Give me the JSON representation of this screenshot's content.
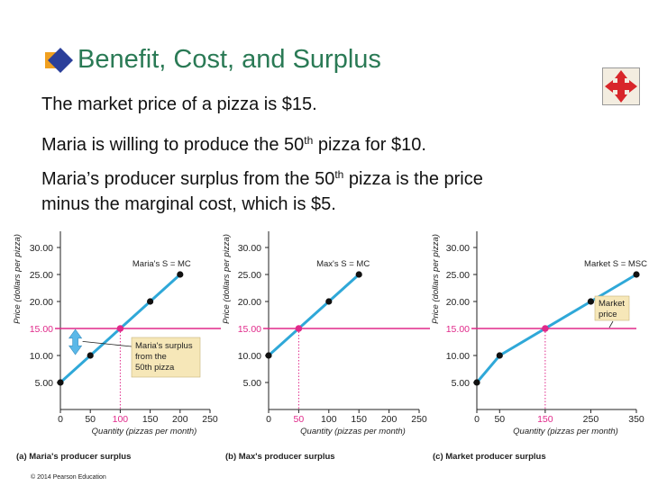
{
  "slide": {
    "title": "Benefit, Cost, and Surplus",
    "copyright": "© 2014 Pearson Education",
    "bullet_icon": "diamond-bullet-icon",
    "nav_icon": "four-way-arrows-icon",
    "paragraphs": [
      {
        "before": "The market price of a pizza is $15.",
        "sup": "",
        "after": ""
      },
      {
        "before": "Maria is willing to produce the 50",
        "sup": "th",
        "after": " pizza for $10."
      },
      {
        "before": "Maria’s producer surplus from the 50",
        "sup": "th",
        "after": " pizza is the price"
      },
      {
        "before": "minus the marginal cost, which is $5.",
        "sup": "",
        "after": ""
      }
    ]
  },
  "colors": {
    "supply_line": "#2fa8d8",
    "price_line": "#e0298a",
    "point": "#111111",
    "callout_fill": "#f6e7b8",
    "surplus_arrow": "#5ab8e8"
  },
  "chart_data": [
    {
      "type": "line",
      "caption": "(a) Maria's producer surplus",
      "ylabel": "Price (dollars per pizza)",
      "xlabel": "Quantity (pizzas per month)",
      "curve_label": "Maria's S = MC",
      "x_ticks": [
        "0",
        "50",
        "100",
        "150",
        "200",
        "250"
      ],
      "x_tick_values": [
        0,
        50,
        100,
        150,
        200,
        250
      ],
      "y_ticks": [
        "5.00",
        "10.00",
        "15.00",
        "20.00",
        "25.00",
        "30.00"
      ],
      "y_tick_values": [
        5,
        10,
        15,
        20,
        25,
        30
      ],
      "xlim": [
        0,
        250
      ],
      "ylim": [
        0,
        33
      ],
      "series": [
        {
          "x": [
            0,
            50,
            150,
            200
          ],
          "y": [
            5,
            10,
            20,
            25
          ]
        }
      ],
      "price_line": 15,
      "price_label": "15.00",
      "equilibrium": {
        "x": 100,
        "y": 15
      },
      "annotation": {
        "lines": [
          "Maria's surplus",
          "from the",
          "50th pizza"
        ]
      }
    },
    {
      "type": "line",
      "caption": "(b) Max's producer surplus",
      "ylabel": "Price (dollars per pizza)",
      "xlabel": "Quantity (pizzas per month)",
      "curve_label": "Max's S = MC",
      "x_ticks": [
        "0",
        "50",
        "100",
        "150",
        "200",
        "250"
      ],
      "x_tick_values": [
        0,
        50,
        100,
        150,
        200,
        250
      ],
      "y_ticks": [
        "5.00",
        "10.00",
        "15.00",
        "20.00",
        "25.00",
        "30.00"
      ],
      "y_tick_values": [
        5,
        10,
        15,
        20,
        25,
        30
      ],
      "xlim": [
        0,
        250
      ],
      "ylim": [
        0,
        33
      ],
      "series": [
        {
          "x": [
            0,
            100,
            150
          ],
          "y": [
            10,
            20,
            25
          ]
        }
      ],
      "price_line": 15,
      "price_label": "15.00",
      "equilibrium": {
        "x": 50,
        "y": 15
      }
    },
    {
      "type": "line",
      "caption": "(c) Market producer surplus",
      "ylabel": "Price (dollars per pizza)",
      "xlabel": "Quantity (pizzas per month)",
      "curve_label": "Market S = MSC",
      "x_ticks": [
        "0",
        "50",
        "150",
        "250",
        "350"
      ],
      "x_tick_values": [
        0,
        50,
        150,
        250,
        350
      ],
      "y_ticks": [
        "5.00",
        "10.00",
        "15.00",
        "20.00",
        "25.00",
        "30.00"
      ],
      "y_tick_values": [
        5,
        10,
        15,
        20,
        25,
        30
      ],
      "xlim": [
        0,
        350
      ],
      "ylim": [
        0,
        33
      ],
      "series": [
        {
          "x": [
            0,
            50,
            250,
            350
          ],
          "y": [
            5,
            10,
            20,
            25
          ]
        }
      ],
      "price_line": 15,
      "price_label": "15.00",
      "equilibrium": {
        "x": 150,
        "y": 15
      },
      "annotation": {
        "lines": [
          "Market",
          "price"
        ]
      }
    }
  ]
}
